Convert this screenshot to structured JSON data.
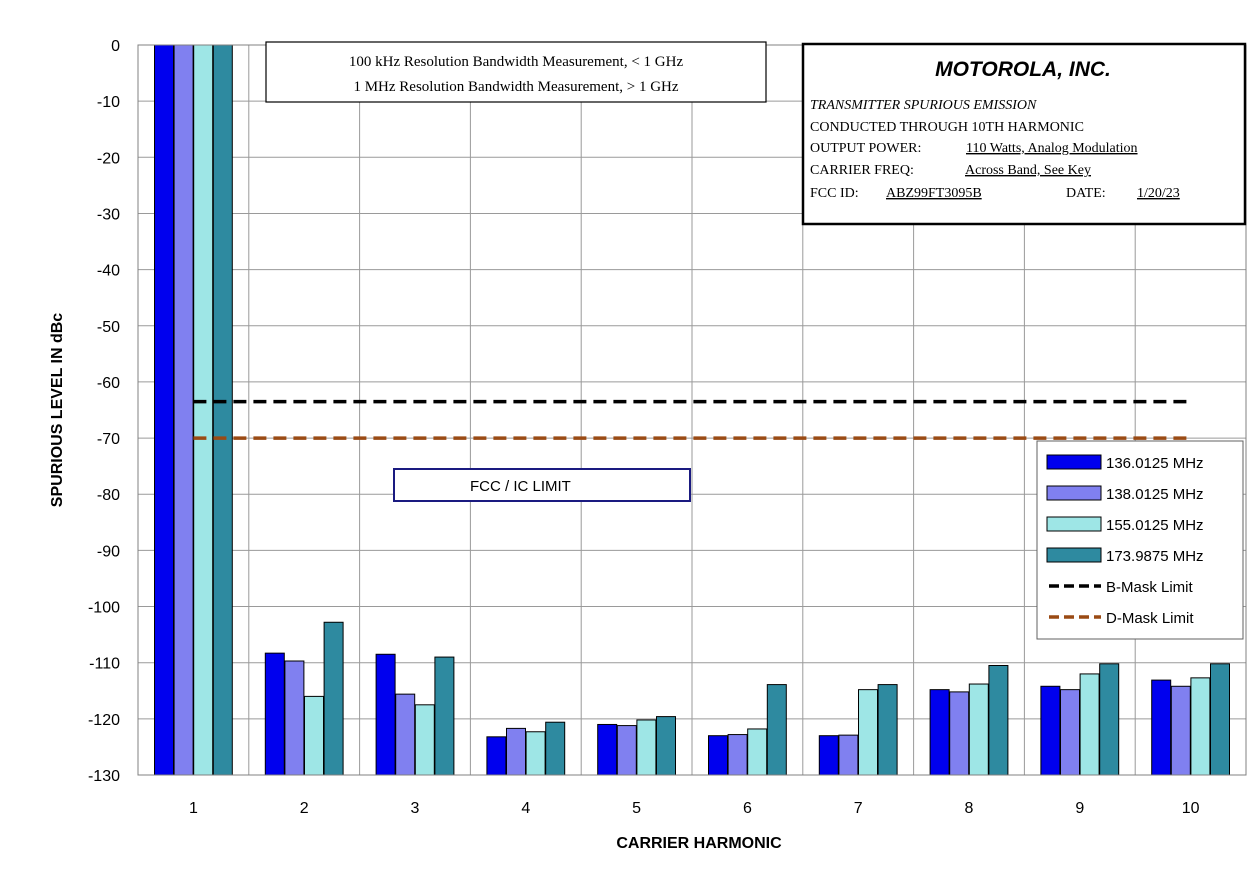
{
  "chart_data": {
    "type": "bar",
    "categories": [
      "1",
      "2",
      "3",
      "4",
      "5",
      "6",
      "7",
      "8",
      "9",
      "10"
    ],
    "series": [
      {
        "name": "136.0125 MHz",
        "color": "#0000ee",
        "values": [
          0,
          -108.3,
          -108.5,
          -123.2,
          -121.0,
          -123.0,
          -123.0,
          -114.8,
          -114.2,
          -113.1
        ]
      },
      {
        "name": "138.0125 MHz",
        "color": "#8080f0",
        "values": [
          0,
          -109.7,
          -115.6,
          -121.7,
          -121.2,
          -122.8,
          -122.9,
          -115.2,
          -114.8,
          -114.2
        ]
      },
      {
        "name": "155.0125 MHz",
        "color": "#9ee6e6",
        "values": [
          0,
          -116.0,
          -117.5,
          -122.3,
          -120.2,
          -121.8,
          -114.8,
          -113.8,
          -112.0,
          -112.7
        ]
      },
      {
        "name": "173.9875 MHz",
        "color": "#2e8aa0",
        "values": [
          0,
          -102.8,
          -109.0,
          -120.6,
          -119.6,
          -113.9,
          -113.9,
          -110.5,
          -110.2,
          -110.2
        ]
      }
    ],
    "limits": [
      {
        "name": "B-Mask Limit",
        "value": -63.5,
        "color": "#000000"
      },
      {
        "name": "D-Mask Limit",
        "value": -70.0,
        "color": "#9a4a14"
      }
    ],
    "xlabel": "CARRIER HARMONIC",
    "ylabel": "SPURIOUS LEVEL IN dBc",
    "ylim": [
      -130,
      0
    ],
    "yticks": [
      0,
      -10,
      -20,
      -30,
      -40,
      -50,
      -60,
      -70,
      -80,
      -90,
      -100,
      -110,
      -120,
      -130
    ],
    "grid": true,
    "legend_position": "right"
  },
  "annotations": {
    "rbw_line1": "100 kHz Resolution Bandwidth Measurement, < 1 GHz",
    "rbw_line2": "1 MHz Resolution Bandwidth Measurement, > 1 GHz",
    "limit_label": "FCC / IC LIMIT"
  },
  "info_box": {
    "company": "MOTOROLA, INC.",
    "line1": "TRANSMITTER SPURIOUS EMISSION",
    "line2": "CONDUCTED THROUGH 10TH HARMONIC",
    "power_label": "OUTPUT POWER:",
    "power_value": "110 Watts, Analog Modulation",
    "freq_label": "CARRIER FREQ:",
    "freq_value": "Across Band, See Key",
    "fcc_label": "FCC ID:",
    "fcc_value": "ABZ99FT3095B",
    "date_label": "DATE:",
    "date_value": "1/20/23"
  }
}
